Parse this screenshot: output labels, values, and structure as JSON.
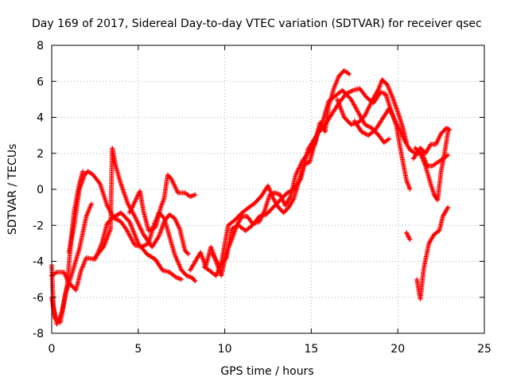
{
  "chart_data": {
    "type": "scatter",
    "title": "Day 169 of 2017, Sidereal Day-to-day VTEC variation (SDTVAR) for receiver qsec",
    "xlabel": "GPS time / hours",
    "ylabel": "SDTVAR / TECUs",
    "xlim": [
      0,
      25
    ],
    "ylim": [
      -8,
      8
    ],
    "xticks": [
      0,
      5,
      10,
      15,
      20,
      25
    ],
    "yticks": [
      -8,
      -6,
      -4,
      -2,
      0,
      2,
      4,
      6,
      8
    ],
    "grid": true,
    "marker": "+",
    "series": [
      {
        "name": "SDTVAR",
        "color": "#ff0000",
        "tracks": [
          [
            [
              0.0,
              -4.2
            ],
            [
              0.1,
              -6.5
            ],
            [
              0.3,
              -7.5
            ],
            [
              0.6,
              -6.8
            ],
            [
              0.9,
              -5.3
            ],
            [
              1.1,
              -3.0
            ],
            [
              1.3,
              -1.2
            ],
            [
              1.6,
              0.3
            ],
            [
              1.8,
              1.0
            ]
          ],
          [
            [
              0.0,
              -6.0
            ],
            [
              0.2,
              -7.2
            ],
            [
              0.5,
              -7.4
            ],
            [
              0.8,
              -5.8
            ],
            [
              1.2,
              -4.6
            ],
            [
              1.6,
              -3.3
            ],
            [
              2.0,
              -1.5
            ],
            [
              2.3,
              -0.8
            ]
          ],
          [
            [
              0.0,
              -4.8
            ],
            [
              0.3,
              -4.6
            ],
            [
              0.7,
              -4.6
            ],
            [
              1.0,
              -5.2
            ],
            [
              1.4,
              -5.6
            ],
            [
              1.7,
              -4.5
            ],
            [
              2.0,
              -3.8
            ],
            [
              2.5,
              -3.9
            ],
            [
              2.9,
              -3.0
            ],
            [
              3.2,
              -1.9
            ],
            [
              3.5,
              -1.6
            ],
            [
              4.0,
              -1.3
            ],
            [
              4.5,
              -1.8
            ],
            [
              5.0,
              -3.0
            ],
            [
              5.5,
              -3.6
            ],
            [
              6.0,
              -3.9
            ],
            [
              6.4,
              -4.5
            ],
            [
              6.8,
              -4.6
            ],
            [
              7.2,
              -4.9
            ],
            [
              7.5,
              -5.0
            ]
          ],
          [
            [
              1.0,
              -3.5
            ],
            [
              1.3,
              -2.0
            ],
            [
              1.6,
              0.0
            ],
            [
              1.9,
              0.8
            ],
            [
              2.1,
              1.0
            ],
            [
              2.4,
              0.8
            ],
            [
              2.8,
              0.3
            ],
            [
              3.2,
              -0.9
            ],
            [
              3.6,
              -1.6
            ],
            [
              4.0,
              -1.8
            ],
            [
              4.3,
              -2.2
            ],
            [
              4.8,
              -3.1
            ],
            [
              5.2,
              -3.2
            ],
            [
              5.6,
              -3.0
            ],
            [
              5.9,
              -2.0
            ],
            [
              6.2,
              -1.3
            ],
            [
              6.5,
              -1.6
            ],
            [
              6.8,
              -2.6
            ],
            [
              7.1,
              -3.6
            ],
            [
              7.5,
              -4.5
            ],
            [
              7.8,
              -4.8
            ],
            [
              8.1,
              -4.9
            ],
            [
              8.3,
              -5.1
            ]
          ],
          [
            [
              2.5,
              -3.8
            ],
            [
              3.0,
              -3.2
            ],
            [
              3.4,
              -2.2
            ],
            [
              3.5,
              2.3
            ],
            [
              3.7,
              1.3
            ],
            [
              4.0,
              0.3
            ],
            [
              4.4,
              -0.8
            ],
            [
              4.8,
              -1.5
            ],
            [
              5.3,
              -2.5
            ],
            [
              5.8,
              -3.2
            ],
            [
              6.2,
              -2.6
            ],
            [
              6.5,
              -1.8
            ],
            [
              6.8,
              -1.4
            ],
            [
              7.1,
              -1.6
            ],
            [
              7.4,
              -2.2
            ],
            [
              7.7,
              -3.4
            ],
            [
              7.9,
              -3.6
            ]
          ],
          [
            [
              4.5,
              -1.3
            ],
            [
              4.9,
              -0.5
            ],
            [
              5.1,
              -0.1
            ],
            [
              5.3,
              -1.2
            ],
            [
              5.6,
              -2.3
            ],
            [
              6.0,
              -2.1
            ],
            [
              6.3,
              -1.0
            ],
            [
              6.5,
              -0.5
            ],
            [
              6.7,
              0.8
            ],
            [
              6.9,
              0.6
            ],
            [
              7.3,
              -0.2
            ],
            [
              7.7,
              -0.2
            ],
            [
              8.0,
              -0.4
            ],
            [
              8.3,
              -0.3
            ]
          ],
          [
            [
              8.0,
              -4.5
            ],
            [
              8.3,
              -4.0
            ],
            [
              8.6,
              -3.5
            ],
            [
              8.9,
              -4.3
            ],
            [
              9.2,
              -3.2
            ],
            [
              9.5,
              -4.0
            ],
            [
              9.8,
              -4.8
            ],
            [
              10.1,
              -3.5
            ],
            [
              10.4,
              -2.8
            ],
            [
              10.7,
              -2.0
            ],
            [
              11.0,
              -1.5
            ],
            [
              11.3,
              -1.5
            ],
            [
              11.6,
              -1.9
            ],
            [
              12.0,
              -1.8
            ],
            [
              12.3,
              -1.2
            ],
            [
              12.6,
              -0.3
            ],
            [
              12.9,
              -0.2
            ],
            [
              13.2,
              -0.3
            ],
            [
              13.5,
              -0.9
            ],
            [
              13.8,
              -0.4
            ],
            [
              14.1,
              0.8
            ],
            [
              14.5,
              1.6
            ],
            [
              14.8,
              2.0
            ],
            [
              15.2,
              2.5
            ],
            [
              15.5,
              3.7
            ],
            [
              15.8,
              3.2
            ],
            [
              16.0,
              4.6
            ],
            [
              16.3,
              5.6
            ],
            [
              16.6,
              6.3
            ],
            [
              16.9,
              6.6
            ],
            [
              17.2,
              6.4
            ]
          ],
          [
            [
              8.8,
              -4.3
            ],
            [
              9.1,
              -4.5
            ],
            [
              9.5,
              -4.8
            ],
            [
              9.8,
              -4.1
            ],
            [
              10.2,
              -2.0
            ],
            [
              10.6,
              -1.7
            ],
            [
              11.0,
              -1.3
            ],
            [
              11.4,
              -1.0
            ],
            [
              11.7,
              -0.8
            ],
            [
              12.1,
              -0.4
            ],
            [
              12.5,
              0.2
            ],
            [
              12.8,
              -0.5
            ],
            [
              13.1,
              -1.0
            ],
            [
              13.4,
              -1.3
            ],
            [
              13.7,
              -1.0
            ],
            [
              14.0,
              -0.5
            ],
            [
              14.3,
              0.5
            ],
            [
              14.6,
              1.4
            ],
            [
              14.9,
              1.5
            ],
            [
              15.1,
              2.2
            ],
            [
              15.4,
              3.2
            ],
            [
              15.7,
              3.9
            ],
            [
              16.0,
              4.9
            ],
            [
              16.4,
              5.2
            ],
            [
              16.8,
              5.5
            ],
            [
              17.3,
              5.0
            ],
            [
              17.7,
              4.3
            ],
            [
              18.1,
              3.6
            ],
            [
              18.5,
              3.4
            ],
            [
              18.9,
              3.0
            ],
            [
              19.2,
              2.6
            ],
            [
              19.5,
              2.8
            ]
          ],
          [
            [
              9.3,
              -3.6
            ],
            [
              9.7,
              -4.3
            ],
            [
              10.1,
              -3.8
            ],
            [
              10.4,
              -2.2
            ],
            [
              10.8,
              -2.0
            ],
            [
              11.2,
              -2.3
            ],
            [
              11.6,
              -2.0
            ],
            [
              12.0,
              -1.5
            ],
            [
              12.4,
              -1.4
            ],
            [
              12.8,
              -1.0
            ],
            [
              13.2,
              -0.6
            ],
            [
              13.6,
              -0.2
            ],
            [
              14.0,
              0.0
            ],
            [
              14.4,
              0.6
            ],
            [
              14.8,
              2.2
            ],
            [
              15.3,
              3.0
            ],
            [
              15.8,
              3.6
            ],
            [
              16.2,
              4.2
            ],
            [
              16.6,
              4.8
            ],
            [
              17.0,
              5.3
            ],
            [
              17.4,
              5.5
            ],
            [
              17.8,
              5.6
            ],
            [
              18.2,
              5.1
            ],
            [
              18.6,
              4.8
            ],
            [
              19.0,
              5.4
            ],
            [
              19.3,
              5.3
            ],
            [
              19.6,
              4.4
            ],
            [
              19.9,
              3.6
            ],
            [
              20.2,
              2.0
            ],
            [
              20.5,
              0.5
            ],
            [
              20.7,
              0.0
            ]
          ],
          [
            [
              16.5,
              5.0
            ],
            [
              16.9,
              4.0
            ],
            [
              17.3,
              3.6
            ],
            [
              17.7,
              3.7
            ],
            [
              18.1,
              4.1
            ],
            [
              18.5,
              4.9
            ],
            [
              18.9,
              5.6
            ],
            [
              19.1,
              6.1
            ],
            [
              19.4,
              5.8
            ],
            [
              19.7,
              5.1
            ],
            [
              20.0,
              4.3
            ],
            [
              20.3,
              3.4
            ],
            [
              20.5,
              2.6
            ]
          ],
          [
            [
              17.5,
              3.8
            ],
            [
              17.9,
              3.2
            ],
            [
              18.3,
              3.0
            ],
            [
              18.7,
              3.3
            ],
            [
              19.1,
              3.9
            ],
            [
              19.5,
              4.5
            ],
            [
              19.8,
              3.9
            ],
            [
              20.1,
              3.3
            ],
            [
              20.4,
              2.7
            ],
            [
              20.7,
              2.2
            ],
            [
              21.0,
              2.0
            ],
            [
              21.4,
              2.0
            ],
            [
              21.7,
              1.3
            ],
            [
              22.0,
              1.3
            ],
            [
              22.3,
              1.5
            ],
            [
              22.6,
              1.7
            ],
            [
              22.9,
              1.9
            ]
          ],
          [
            [
              20.5,
              -2.4
            ],
            [
              20.7,
              -2.8
            ]
          ],
          [
            [
              21.1,
              -5.0
            ],
            [
              21.3,
              -6.1
            ],
            [
              21.5,
              -4.4
            ],
            [
              21.8,
              -3.0
            ],
            [
              22.1,
              -2.5
            ],
            [
              22.4,
              -2.3
            ],
            [
              22.6,
              -1.5
            ],
            [
              22.9,
              -1.0
            ]
          ],
          [
            [
              21.0,
              2.3
            ],
            [
              21.3,
              2.0
            ],
            [
              21.6,
              1.3
            ],
            [
              21.9,
              0.3
            ],
            [
              22.1,
              -0.3
            ],
            [
              22.3,
              -0.6
            ],
            [
              22.5,
              1.0
            ],
            [
              22.7,
              2.0
            ],
            [
              22.9,
              3.2
            ]
          ],
          [
            [
              20.9,
              1.7
            ],
            [
              21.3,
              2.3
            ],
            [
              21.6,
              2.0
            ],
            [
              21.9,
              2.5
            ],
            [
              22.2,
              2.5
            ],
            [
              22.5,
              3.1
            ],
            [
              22.8,
              3.4
            ],
            [
              23.0,
              3.3
            ]
          ]
        ]
      }
    ]
  }
}
